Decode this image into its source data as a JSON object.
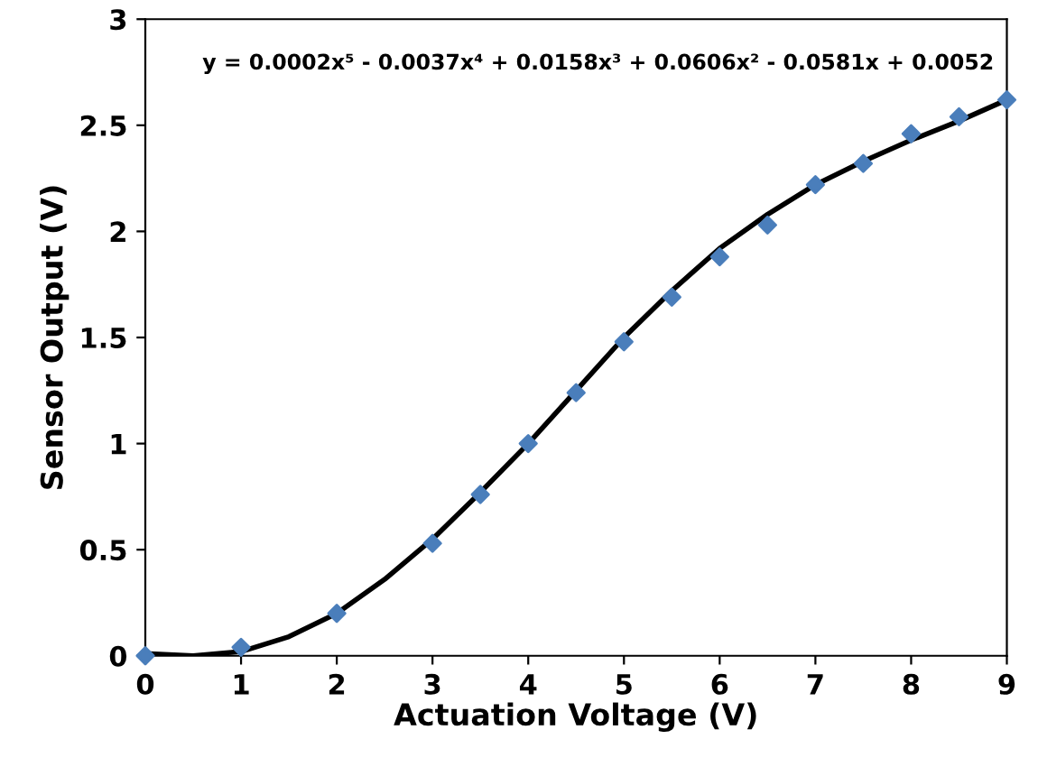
{
  "chart_data": {
    "type": "scatter",
    "xlabel": "Actuation Voltage (V)",
    "ylabel": "Sensor Output (V)",
    "xlim": [
      0,
      9
    ],
    "xticks": [
      0,
      1,
      2,
      3,
      4,
      5,
      6,
      7,
      8,
      9
    ],
    "ylim": [
      0,
      3
    ],
    "yticks": [
      0,
      0.5,
      1,
      1.5,
      2,
      2.5,
      3
    ],
    "grid": false,
    "legend": false,
    "annotations": [
      "y = 0.0002x⁵ - 0.0037x⁴ + 0.0158x³ + 0.0606x² - 0.0581x + 0.0052"
    ],
    "series": [
      {
        "marker": "diamond",
        "color": "#4a7ebb",
        "x": [
          0,
          1,
          2,
          3,
          3.5,
          4,
          4.5,
          5,
          5.5,
          6,
          6.5,
          7,
          7.5,
          8,
          8.5,
          9
        ],
        "values": [
          0,
          0.04,
          0.2,
          0.53,
          0.76,
          1.0,
          1.24,
          1.48,
          1.69,
          1.88,
          2.03,
          2.22,
          2.32,
          2.46,
          2.54,
          2.62
        ]
      },
      {
        "type": "line",
        "line_style": "solid",
        "color": "#000000",
        "x": [
          0,
          0.5,
          1,
          1.5,
          2,
          2.5,
          3,
          3.5,
          4,
          4.5,
          5,
          5.5,
          6,
          6.5,
          7,
          7.5,
          8,
          8.5,
          9
        ],
        "values": [
          0.01,
          0,
          0.02,
          0.09,
          0.2,
          0.36,
          0.55,
          0.77,
          1.0,
          1.25,
          1.5,
          1.72,
          1.92,
          2.08,
          2.22,
          2.33,
          2.43,
          2.52,
          2.62
        ]
      }
    ]
  }
}
